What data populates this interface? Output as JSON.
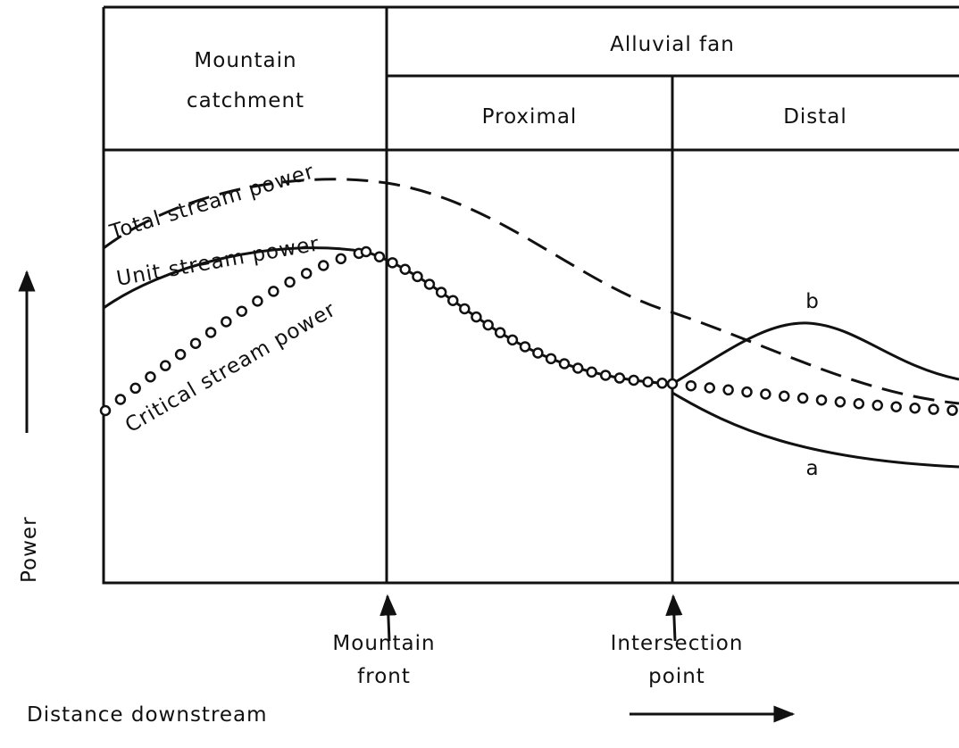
{
  "header": {
    "catchment": [
      "Mountain",
      "catchment"
    ],
    "fan": "Alluvial fan",
    "proximal": "Proximal",
    "distal": "Distal"
  },
  "curves": {
    "total": "Total stream power",
    "unit": "Unit stream power",
    "critical": "Critical stream power",
    "a": "a",
    "b": "b"
  },
  "axes": {
    "y": "Power",
    "x": "Distance downstream"
  },
  "markers": {
    "front": [
      "Mountain",
      "front"
    ],
    "intersection": [
      "Intersection",
      "point"
    ]
  }
}
